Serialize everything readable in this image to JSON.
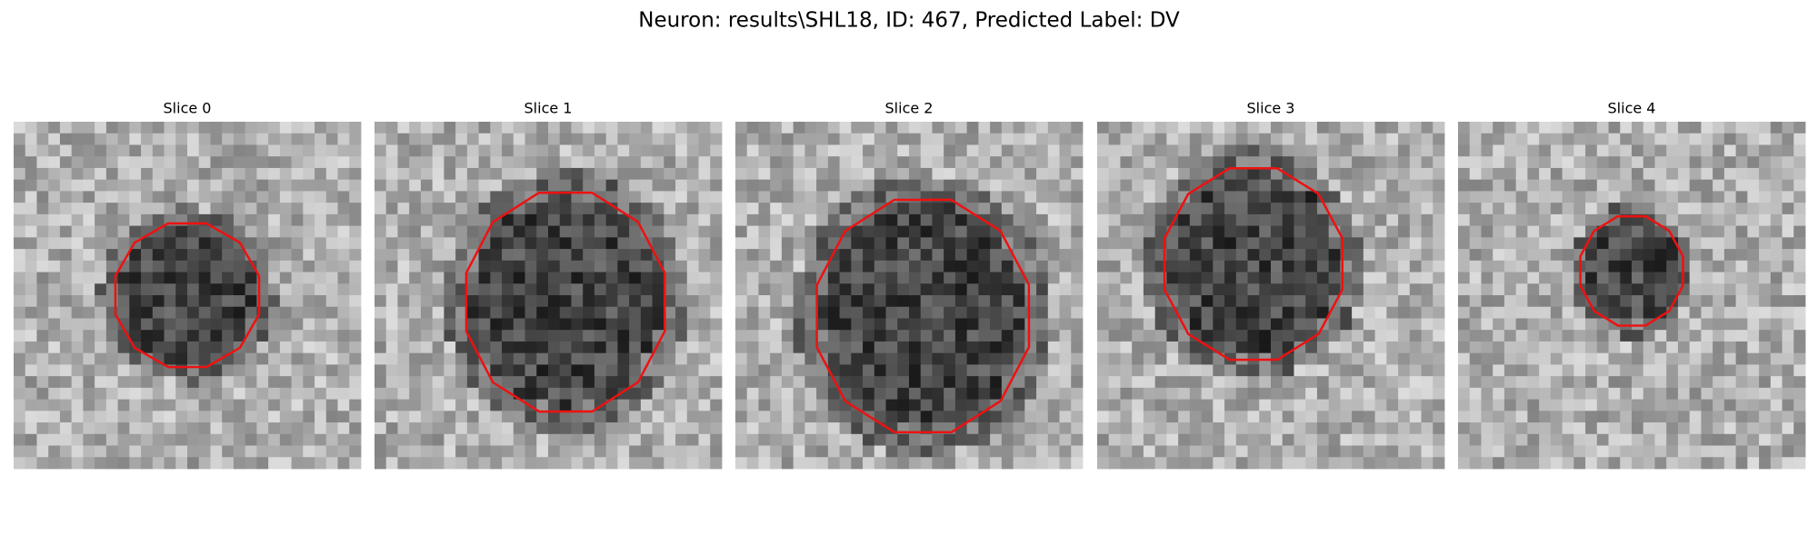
{
  "figure": {
    "title": "Neuron: results\\SHL18, ID: 467, Predicted Label: DV",
    "panels": [
      {
        "title": "Slice 0"
      },
      {
        "title": "Slice 1"
      },
      {
        "title": "Slice 2"
      },
      {
        "title": "Slice 3"
      },
      {
        "title": "Slice 4"
      }
    ]
  }
}
